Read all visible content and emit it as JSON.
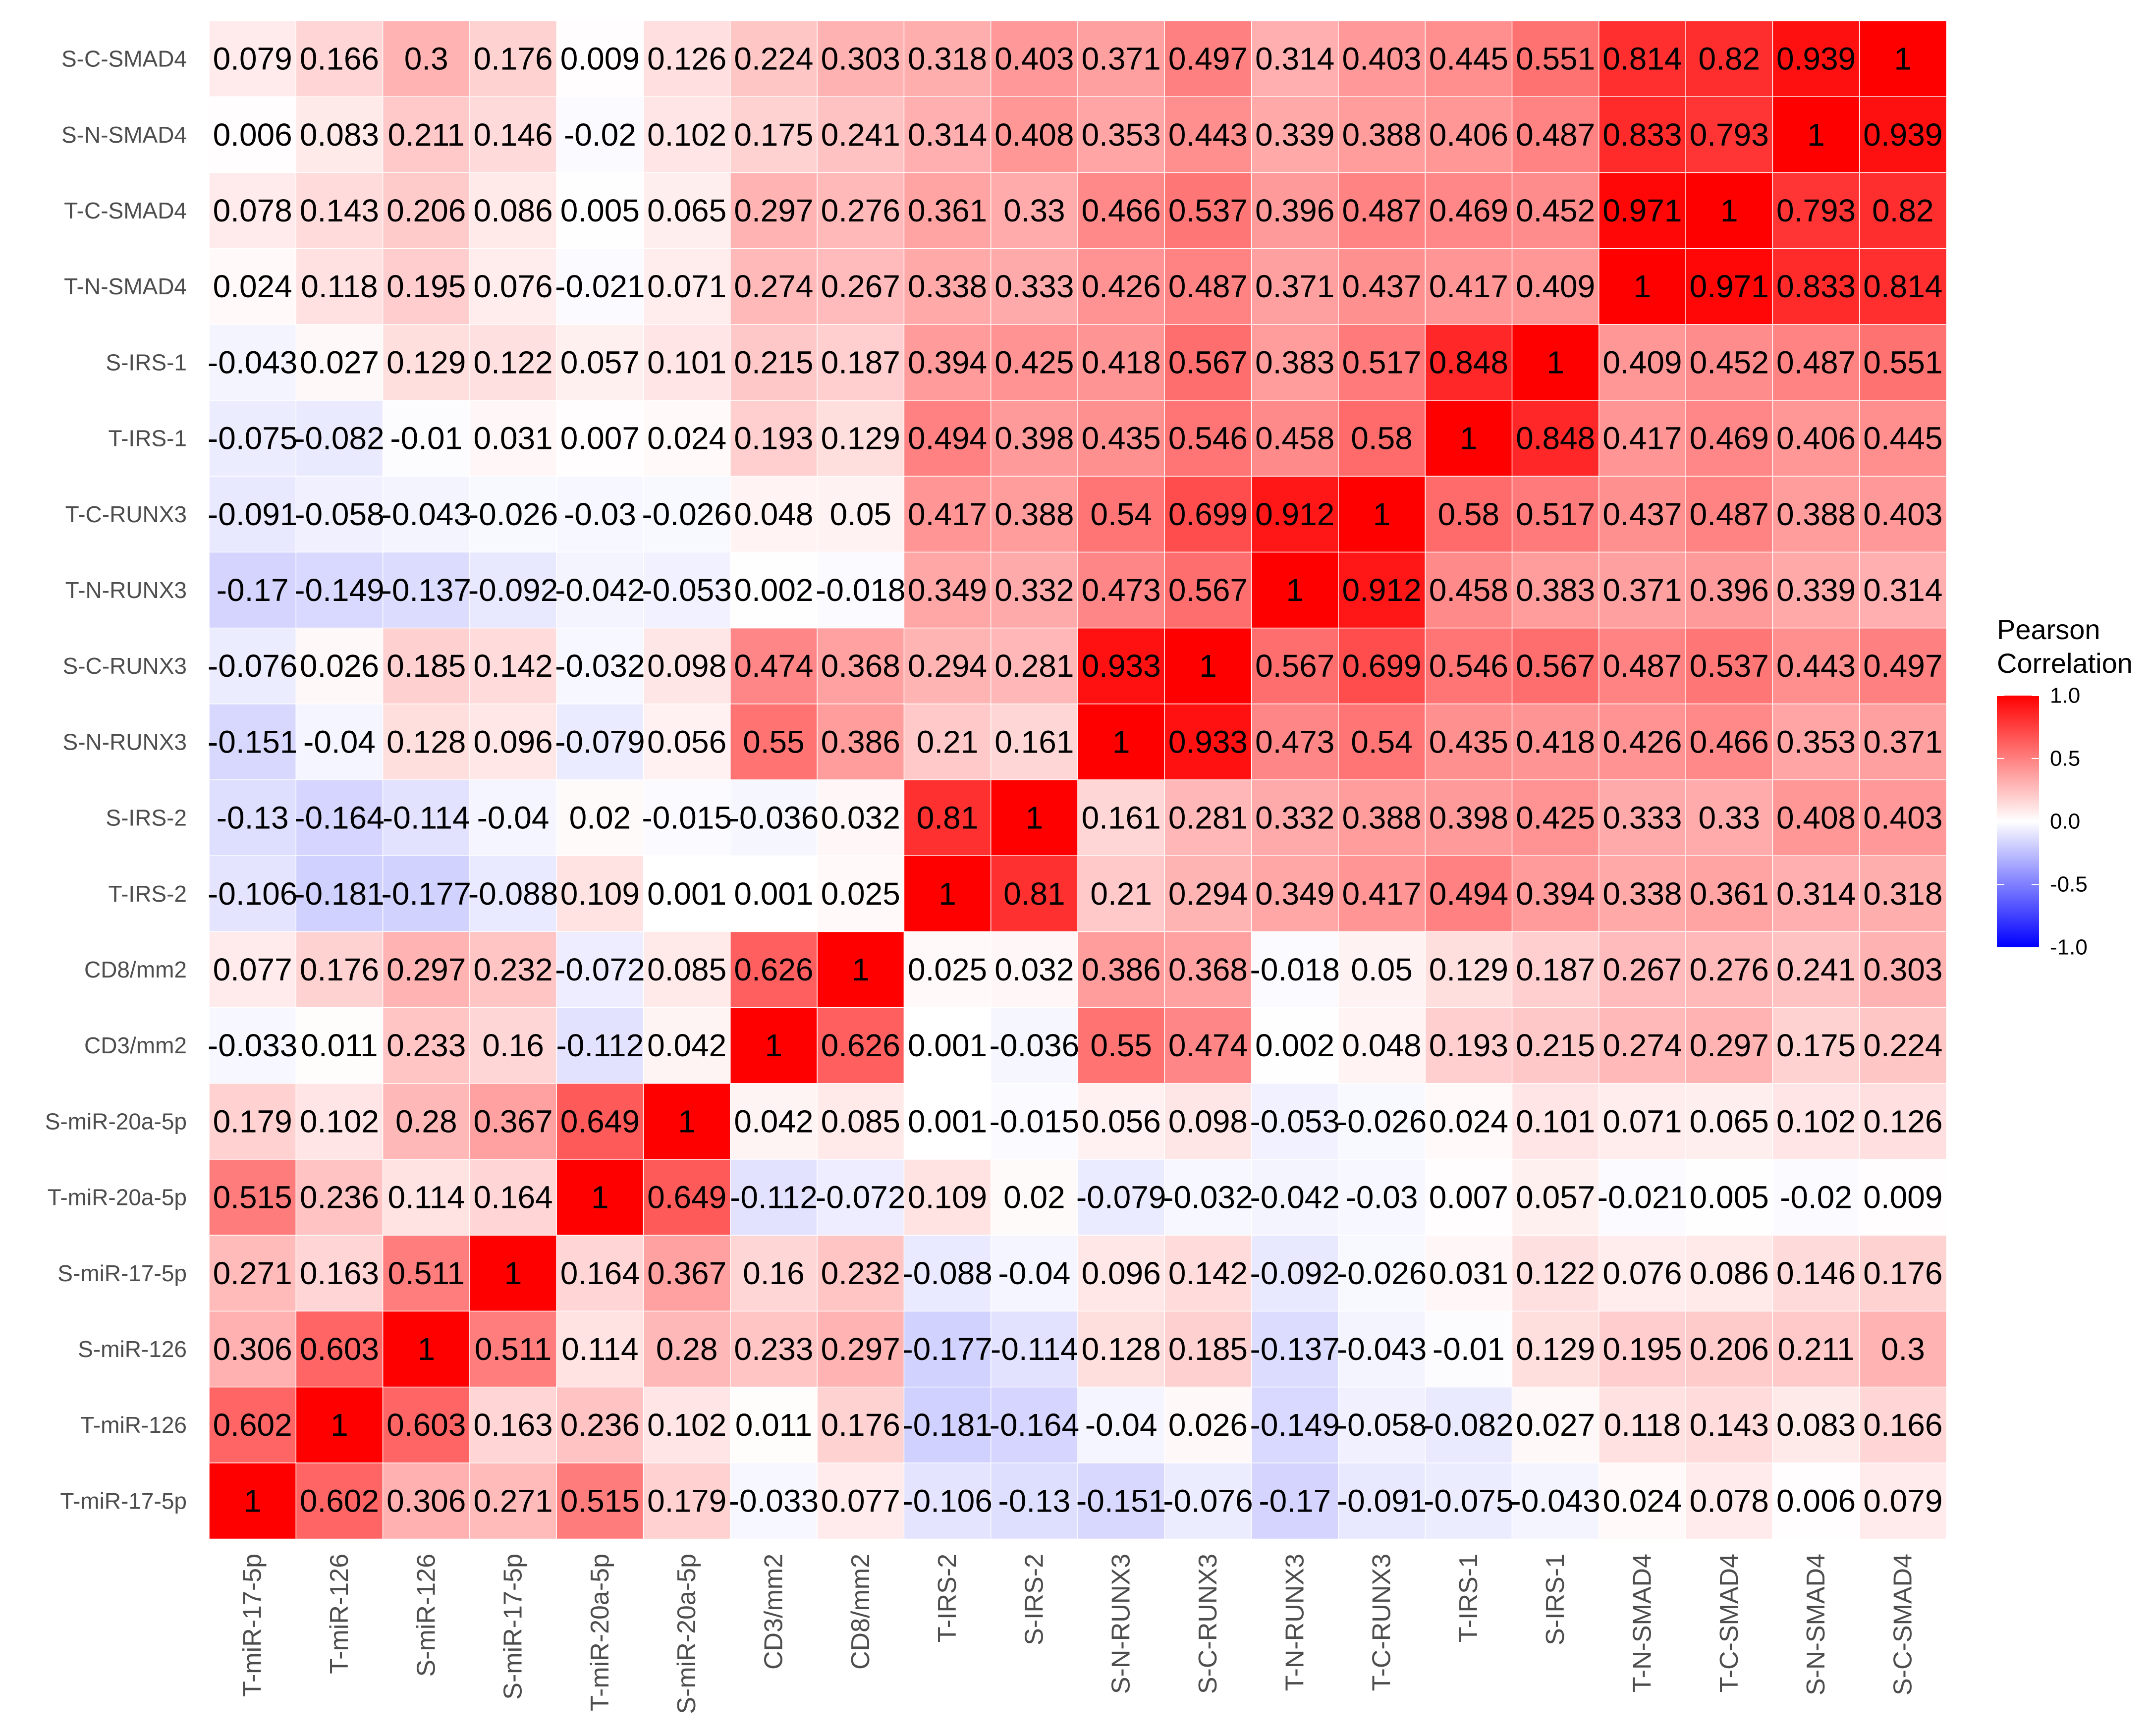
{
  "chart_data": {
    "type": "heatmap",
    "title": "",
    "xlabel": "",
    "ylabel": "",
    "x_labels": [
      "T-miR-17-5p",
      "T-miR-126",
      "S-miR-126",
      "S-miR-17-5p",
      "T-miR-20a-5p",
      "S-miR-20a-5p",
      "CD3/mm2",
      "CD8/mm2",
      "T-IRS-2",
      "S-IRS-2",
      "S-N-RUNX3",
      "S-C-RUNX3",
      "T-N-RUNX3",
      "T-C-RUNX3",
      "T-IRS-1",
      "S-IRS-1",
      "T-N-SMAD4",
      "T-C-SMAD4",
      "S-N-SMAD4",
      "S-C-SMAD4"
    ],
    "y_labels": [
      "S-C-SMAD4",
      "S-N-SMAD4",
      "T-C-SMAD4",
      "T-N-SMAD4",
      "S-IRS-1",
      "T-IRS-1",
      "T-C-RUNX3",
      "T-N-RUNX3",
      "S-C-RUNX3",
      "S-N-RUNX3",
      "S-IRS-2",
      "T-IRS-2",
      "CD8/mm2",
      "CD3/mm2",
      "S-miR-20a-5p",
      "T-miR-20a-5p",
      "S-miR-17-5p",
      "S-miR-126",
      "T-miR-126",
      "T-miR-17-5p"
    ],
    "values": [
      [
        0.079,
        0.166,
        0.3,
        0.176,
        0.009,
        0.126,
        0.224,
        0.303,
        0.318,
        0.403,
        0.371,
        0.497,
        0.314,
        0.403,
        0.445,
        0.551,
        0.814,
        0.82,
        0.939,
        1
      ],
      [
        0.006,
        0.083,
        0.211,
        0.146,
        -0.02,
        0.102,
        0.175,
        0.241,
        0.314,
        0.408,
        0.353,
        0.443,
        0.339,
        0.388,
        0.406,
        0.487,
        0.833,
        0.793,
        1,
        0.939
      ],
      [
        0.078,
        0.143,
        0.206,
        0.086,
        0.005,
        0.065,
        0.297,
        0.276,
        0.361,
        0.33,
        0.466,
        0.537,
        0.396,
        0.487,
        0.469,
        0.452,
        0.971,
        1,
        0.793,
        0.82
      ],
      [
        0.024,
        0.118,
        0.195,
        0.076,
        -0.021,
        0.071,
        0.274,
        0.267,
        0.338,
        0.333,
        0.426,
        0.487,
        0.371,
        0.437,
        0.417,
        0.409,
        1,
        0.971,
        0.833,
        0.814
      ],
      [
        -0.043,
        0.027,
        0.129,
        0.122,
        0.057,
        0.101,
        0.215,
        0.187,
        0.394,
        0.425,
        0.418,
        0.567,
        0.383,
        0.517,
        0.848,
        1,
        0.409,
        0.452,
        0.487,
        0.551
      ],
      [
        -0.075,
        -0.082,
        -0.01,
        0.031,
        0.007,
        0.024,
        0.193,
        0.129,
        0.494,
        0.398,
        0.435,
        0.546,
        0.458,
        0.58,
        1,
        0.848,
        0.417,
        0.469,
        0.406,
        0.445
      ],
      [
        -0.091,
        -0.058,
        -0.043,
        -0.026,
        -0.03,
        -0.026,
        0.048,
        0.05,
        0.417,
        0.388,
        0.54,
        0.699,
        0.912,
        1,
        0.58,
        0.517,
        0.437,
        0.487,
        0.388,
        0.403
      ],
      [
        -0.17,
        -0.149,
        -0.137,
        -0.092,
        -0.042,
        -0.053,
        0.002,
        -0.018,
        0.349,
        0.332,
        0.473,
        0.567,
        1,
        0.912,
        0.458,
        0.383,
        0.371,
        0.396,
        0.339,
        0.314
      ],
      [
        -0.076,
        0.026,
        0.185,
        0.142,
        -0.032,
        0.098,
        0.474,
        0.368,
        0.294,
        0.281,
        0.933,
        1,
        0.567,
        0.699,
        0.546,
        0.567,
        0.487,
        0.537,
        0.443,
        0.497
      ],
      [
        -0.151,
        -0.04,
        0.128,
        0.096,
        -0.079,
        0.056,
        0.55,
        0.386,
        0.21,
        0.161,
        1,
        0.933,
        0.473,
        0.54,
        0.435,
        0.418,
        0.426,
        0.466,
        0.353,
        0.371
      ],
      [
        -0.13,
        -0.164,
        -0.114,
        -0.04,
        0.02,
        -0.015,
        -0.036,
        0.032,
        0.81,
        1,
        0.161,
        0.281,
        0.332,
        0.388,
        0.398,
        0.425,
        0.333,
        0.33,
        0.408,
        0.403
      ],
      [
        -0.106,
        -0.181,
        -0.177,
        -0.088,
        0.109,
        0.001,
        0.001,
        0.025,
        1,
        0.81,
        0.21,
        0.294,
        0.349,
        0.417,
        0.494,
        0.394,
        0.338,
        0.361,
        0.314,
        0.318
      ],
      [
        0.077,
        0.176,
        0.297,
        0.232,
        -0.072,
        0.085,
        0.626,
        1,
        0.025,
        0.032,
        0.386,
        0.368,
        -0.018,
        0.05,
        0.129,
        0.187,
        0.267,
        0.276,
        0.241,
        0.303
      ],
      [
        -0.033,
        0.011,
        0.233,
        0.16,
        -0.112,
        0.042,
        1,
        0.626,
        0.001,
        -0.036,
        0.55,
        0.474,
        0.002,
        0.048,
        0.193,
        0.215,
        0.274,
        0.297,
        0.175,
        0.224
      ],
      [
        0.179,
        0.102,
        0.28,
        0.367,
        0.649,
        1,
        0.042,
        0.085,
        0.001,
        -0.015,
        0.056,
        0.098,
        -0.053,
        -0.026,
        0.024,
        0.101,
        0.071,
        0.065,
        0.102,
        0.126
      ],
      [
        0.515,
        0.236,
        0.114,
        0.164,
        1,
        0.649,
        -0.112,
        -0.072,
        0.109,
        0.02,
        -0.079,
        -0.032,
        -0.042,
        -0.03,
        0.007,
        0.057,
        -0.021,
        0.005,
        -0.02,
        0.009
      ],
      [
        0.271,
        0.163,
        0.511,
        1,
        0.164,
        0.367,
        0.16,
        0.232,
        -0.088,
        -0.04,
        0.096,
        0.142,
        -0.092,
        -0.026,
        0.031,
        0.122,
        0.076,
        0.086,
        0.146,
        0.176
      ],
      [
        0.306,
        0.603,
        1,
        0.511,
        0.114,
        0.28,
        0.233,
        0.297,
        -0.177,
        -0.114,
        0.128,
        0.185,
        -0.137,
        -0.043,
        -0.01,
        0.129,
        0.195,
        0.206,
        0.211,
        0.3
      ],
      [
        0.602,
        1,
        0.603,
        0.163,
        0.236,
        0.102,
        0.011,
        0.176,
        -0.181,
        -0.164,
        -0.04,
        0.026,
        -0.149,
        -0.058,
        -0.082,
        0.027,
        0.118,
        0.143,
        0.083,
        0.166
      ],
      [
        1,
        0.602,
        0.306,
        0.271,
        0.515,
        0.179,
        -0.033,
        0.077,
        -0.106,
        -0.13,
        -0.151,
        -0.076,
        -0.17,
        -0.091,
        -0.075,
        -0.043,
        0.024,
        0.078,
        0.006,
        0.079
      ]
    ],
    "color_scale": {
      "low": "#0000ff",
      "mid": "#ffffff",
      "high": "#ff0000",
      "min": -1,
      "max": 1
    },
    "legend": {
      "title_line1": "Pearson",
      "title_line2": "Correlation",
      "ticks": [
        1.0,
        0.5,
        0.0,
        -0.5,
        -1.0
      ],
      "tick_labels": [
        "1.0",
        "0.5",
        "0.0",
        "-0.5",
        "-1.0"
      ],
      "placement": "right"
    }
  }
}
